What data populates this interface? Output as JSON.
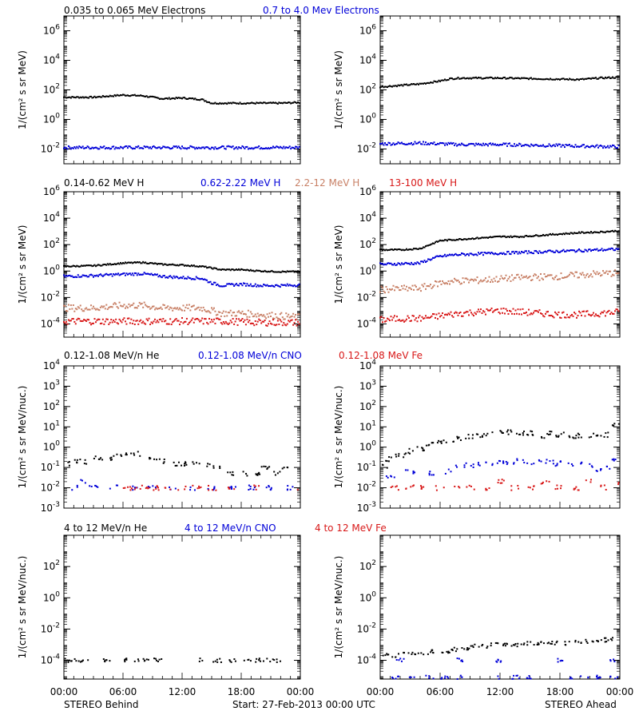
{
  "colors": {
    "black": "#000000",
    "blue": "#0000d8",
    "tan": "#c88066",
    "red": "#d81818"
  },
  "footer": {
    "left_label": "STEREO Behind",
    "center_label": "Start: 27-Feb-2013 00:00 UTC",
    "right_label": "STEREO Ahead"
  },
  "chart_data": [
    {
      "type": "scatter",
      "row": 1,
      "side": "left",
      "legend": [
        {
          "text": "0.035 to 0.065 MeV Electrons",
          "color": "black"
        },
        {
          "text": "0.7 to 4.0 Mev Electrons",
          "color": "blue"
        }
      ],
      "ylabel": "1/(cm² s sr MeV)",
      "yticks": [
        "10^6",
        "10^4",
        "10^2",
        "10^0",
        "10^-2"
      ],
      "ylim_log10": [
        -3,
        7
      ],
      "xlim_hours": [
        0,
        24
      ],
      "series": [
        {
          "color": "black",
          "x": [
            0,
            3,
            6,
            8,
            10,
            12,
            14,
            15,
            16,
            18,
            20,
            22,
            24
          ],
          "log10_y": [
            1.5,
            1.5,
            1.65,
            1.6,
            1.4,
            1.45,
            1.35,
            1.1,
            1.1,
            1.1,
            1.1,
            1.1,
            1.15
          ]
        },
        {
          "color": "blue",
          "x": [
            0,
            4,
            8,
            12,
            16,
            20,
            24
          ],
          "log10_y": [
            -1.9,
            -1.9,
            -1.9,
            -1.9,
            -1.9,
            -1.9,
            -1.9
          ]
        }
      ]
    },
    {
      "type": "scatter",
      "row": 1,
      "side": "right",
      "ylabel": "1/(cm² s sr MeV)",
      "yticks": [
        "10^6",
        "10^4",
        "10^2",
        "10^0",
        "10^-2"
      ],
      "ylim_log10": [
        -3,
        7
      ],
      "xlim_hours": [
        0,
        24
      ],
      "series": [
        {
          "color": "black",
          "x": [
            0,
            2,
            4,
            6,
            7,
            8,
            10,
            12,
            16,
            20,
            22,
            24
          ],
          "log10_y": [
            2.2,
            2.3,
            2.4,
            2.6,
            2.75,
            2.8,
            2.8,
            2.8,
            2.75,
            2.7,
            2.8,
            2.85
          ]
        },
        {
          "color": "blue",
          "x": [
            0,
            4,
            8,
            12,
            16,
            20,
            24
          ],
          "log10_y": [
            -1.65,
            -1.6,
            -1.7,
            -1.7,
            -1.75,
            -1.8,
            -1.85
          ]
        }
      ]
    },
    {
      "type": "scatter",
      "row": 2,
      "side": "left",
      "legend": [
        {
          "text": "0.14-0.62 MeV H",
          "color": "black"
        },
        {
          "text": "0.62-2.22 MeV H",
          "color": "blue"
        },
        {
          "text": "2.2-12 MeV H",
          "color": "tan"
        },
        {
          "text": "13-100 MeV H",
          "color": "red"
        }
      ],
      "ylabel": "1/(cm² s sr MeV)",
      "yticks": [
        "10^6",
        "10^4",
        "10^2",
        "10^0",
        "10^-2",
        "10^-4"
      ],
      "ylim_log10": [
        -5,
        6
      ],
      "xlim_hours": [
        0,
        24
      ],
      "series": [
        {
          "color": "black",
          "x": [
            0,
            3,
            6,
            8,
            10,
            12,
            14,
            16,
            18,
            20,
            22,
            24
          ],
          "log10_y": [
            0.35,
            0.4,
            0.6,
            0.65,
            0.5,
            0.45,
            0.35,
            0.1,
            0.1,
            0.0,
            -0.05,
            -0.05
          ]
        },
        {
          "color": "blue",
          "x": [
            0,
            3,
            6,
            8,
            10,
            12,
            14,
            15,
            16,
            18,
            20,
            22,
            24
          ],
          "log10_y": [
            -0.4,
            -0.35,
            -0.25,
            -0.2,
            -0.4,
            -0.5,
            -0.55,
            -0.9,
            -1.1,
            -1.0,
            -1.1,
            -1.1,
            -1.05
          ]
        },
        {
          "color": "tan",
          "x": [
            0,
            3,
            6,
            8,
            10,
            12,
            14,
            16,
            18,
            20,
            22,
            24
          ],
          "log10_y": [
            -2.8,
            -2.8,
            -2.6,
            -2.6,
            -2.8,
            -2.8,
            -2.8,
            -3.2,
            -3.2,
            -3.3,
            -3.4,
            -3.5
          ]
        },
        {
          "color": "red",
          "x": [
            0,
            4,
            8,
            12,
            16,
            20,
            24
          ],
          "log10_y": [
            -3.8,
            -3.8,
            -3.8,
            -3.8,
            -3.8,
            -3.9,
            -3.9
          ]
        }
      ]
    },
    {
      "type": "scatter",
      "row": 2,
      "side": "right",
      "ylabel": "1/(cm² s sr MeV)",
      "yticks": [
        "10^6",
        "10^4",
        "10^2",
        "10^0",
        "10^-2",
        "10^-4"
      ],
      "ylim_log10": [
        -5,
        6
      ],
      "xlim_hours": [
        0,
        24
      ],
      "series": [
        {
          "color": "black",
          "x": [
            0,
            2,
            4,
            5,
            6,
            7,
            8,
            10,
            12,
            14,
            16,
            18,
            20,
            22,
            24
          ],
          "log10_y": [
            1.6,
            1.6,
            1.7,
            2.0,
            2.3,
            2.35,
            2.4,
            2.5,
            2.6,
            2.6,
            2.7,
            2.8,
            2.9,
            2.95,
            3.05
          ]
        },
        {
          "color": "blue",
          "x": [
            0,
            2,
            4,
            5,
            6,
            7,
            8,
            10,
            12,
            14,
            16,
            18,
            20,
            22,
            24
          ],
          "log10_y": [
            0.5,
            0.55,
            0.6,
            0.9,
            1.1,
            1.2,
            1.25,
            1.3,
            1.35,
            1.4,
            1.45,
            1.5,
            1.55,
            1.6,
            1.65
          ]
        },
        {
          "color": "tan",
          "x": [
            0,
            2,
            4,
            5,
            6,
            7,
            8,
            10,
            12,
            14,
            16,
            18,
            20,
            22,
            24
          ],
          "log10_y": [
            -1.4,
            -1.35,
            -1.3,
            -1.1,
            -0.9,
            -0.8,
            -0.75,
            -0.7,
            -0.6,
            -0.5,
            -0.45,
            -0.4,
            -0.3,
            -0.2,
            -0.15
          ]
        },
        {
          "color": "red",
          "x": [
            0,
            2,
            4,
            6,
            8,
            10,
            12,
            14,
            16,
            18,
            20,
            22,
            24
          ],
          "log10_y": [
            -3.7,
            -3.6,
            -3.6,
            -3.4,
            -3.2,
            -3.1,
            -3.0,
            -3.1,
            -3.2,
            -3.3,
            -3.3,
            -3.2,
            -3.1
          ]
        }
      ]
    },
    {
      "type": "scatter",
      "row": 3,
      "side": "left",
      "legend": [
        {
          "text": "0.12-1.08 MeV/n He",
          "color": "black"
        },
        {
          "text": "0.12-1.08 MeV/n CNO",
          "color": "blue"
        },
        {
          "text": "0.12-1.08 MeV Fe",
          "color": "red"
        }
      ],
      "ylabel": "1/(cm² s sr MeV/nuc.)",
      "yticks": [
        "10^4",
        "10^3",
        "10^2",
        "10^1",
        "10^0",
        "10^-1",
        "10^-2",
        "10^-3"
      ],
      "ylim_log10": [
        -3,
        4
      ],
      "xlim_hours": [
        0,
        24
      ],
      "series": [
        {
          "color": "black",
          "x": [
            0.5,
            1.5,
            2.5,
            3.5,
            4.5,
            5.5,
            6.5,
            7.5,
            8.5,
            9.5,
            10.5,
            11.5,
            12.5,
            13.5,
            14.5,
            15.5,
            17,
            18.5,
            19.5,
            20.5,
            21.5,
            22.5
          ],
          "log10_y": [
            -0.8,
            -0.65,
            -0.7,
            -0.55,
            -0.6,
            -0.45,
            -0.4,
            -0.35,
            -0.5,
            -0.65,
            -0.7,
            -0.8,
            -0.85,
            -0.75,
            -0.9,
            -1.0,
            -1.3,
            -1.3,
            -1.3,
            -1.0,
            -1.3,
            -1.0
          ]
        },
        {
          "color": "blue",
          "x": [
            1,
            2,
            3,
            5,
            7,
            9,
            11,
            13,
            15,
            17,
            19,
            21,
            23
          ],
          "log10_y": [
            -2.0,
            -1.7,
            -2.0,
            -2.0,
            -2.0,
            -2.0,
            -2.0,
            -2.0,
            -2.0,
            -2.0,
            -2.0,
            -2.0,
            -2.0
          ]
        },
        {
          "color": "red",
          "x": [
            6.5,
            7.5,
            8.5,
            9.5,
            10.5,
            12,
            13.5,
            15,
            17,
            19.5,
            24
          ],
          "log10_y": [
            -2.0,
            -2.0,
            -2.0,
            -2.0,
            -2.0,
            -2.0,
            -2.0,
            -2.0,
            -2.0,
            -2.0,
            -2.0
          ]
        }
      ]
    },
    {
      "type": "scatter",
      "row": 3,
      "side": "right",
      "ylabel": "1/(cm² s sr MeV/nuc.)",
      "yticks": [
        "10^4",
        "10^3",
        "10^2",
        "10^1",
        "10^0",
        "10^-1",
        "10^-2",
        "10^-3"
      ],
      "ylim_log10": [
        -3,
        4
      ],
      "xlim_hours": [
        0,
        24
      ],
      "series": [
        {
          "color": "black",
          "x": [
            0.3,
            1,
            2,
            3,
            4,
            5,
            6,
            7,
            8,
            9,
            10,
            11,
            12,
            13,
            14,
            15,
            16,
            17,
            18,
            19,
            20,
            21,
            22,
            23,
            23.7
          ],
          "log10_y": [
            -0.9,
            -0.6,
            -0.4,
            -0.2,
            -0.1,
            0.1,
            0.25,
            0.35,
            0.45,
            0.55,
            0.6,
            0.65,
            0.7,
            0.75,
            0.7,
            0.7,
            0.55,
            0.7,
            0.6,
            0.55,
            0.55,
            0.6,
            0.5,
            0.6,
            1.1
          ]
        },
        {
          "color": "blue",
          "x": [
            1,
            3,
            5,
            7,
            8,
            9,
            10,
            11,
            12,
            13,
            14,
            15,
            16,
            17,
            18,
            19,
            20,
            21,
            22,
            23,
            23.7
          ],
          "log10_y": [
            -1.5,
            -1.2,
            -1.3,
            -1.2,
            -1.0,
            -0.9,
            -0.85,
            -0.8,
            -0.8,
            -0.75,
            -0.7,
            -0.8,
            -0.75,
            -0.7,
            -0.8,
            -0.9,
            -0.85,
            -0.9,
            -1.1,
            -1.0,
            -0.6
          ]
        },
        {
          "color": "red",
          "x": [
            1.5,
            3,
            4.5,
            6,
            7.5,
            9,
            10.5,
            12,
            13.5,
            15,
            16.5,
            18,
            19.5,
            21,
            22.5,
            24
          ],
          "log10_y": [
            -2.0,
            -2.0,
            -2.0,
            -2.0,
            -2.0,
            -2.0,
            -2.0,
            -1.7,
            -2.0,
            -2.0,
            -1.7,
            -2.0,
            -2.0,
            -1.7,
            -2.0,
            -1.7
          ]
        }
      ]
    },
    {
      "type": "scatter",
      "row": 4,
      "side": "left",
      "legend": [
        {
          "text": "4 to 12 MeV/n He",
          "color": "black"
        },
        {
          "text": "4 to 12 MeV/n CNO",
          "color": "blue"
        },
        {
          "text": "4 to 12 MeV Fe",
          "color": "red"
        }
      ],
      "ylabel": "1/(cm² s sr MeV/nuc.)",
      "yticks": [
        "10^2",
        "10^0",
        "10^-2",
        "10^-4"
      ],
      "ylim_log10": [
        -5.2,
        4
      ],
      "xlim_hours": [
        0,
        24
      ],
      "series": [
        {
          "color": "black",
          "x": [
            0.2,
            0.8,
            1.4,
            2.0,
            4.3,
            6.0,
            7.2,
            8.4,
            9.6,
            14.0,
            15.6,
            17.1,
            18.6,
            19.6,
            20.6,
            21.6
          ],
          "log10_y": [
            -4.0,
            -4.0,
            -4.0,
            -4.0,
            -4.0,
            -4.0,
            -4.0,
            -4.0,
            -4.0,
            -4.0,
            -4.0,
            -4.0,
            -4.0,
            -4.0,
            -4.0,
            -4.0
          ]
        }
      ]
    },
    {
      "type": "scatter",
      "row": 4,
      "side": "right",
      "ylabel": "1/(cm² s sr MeV/nuc.)",
      "yticks": [
        "10^2",
        "10^0",
        "10^-2",
        "10^-4"
      ],
      "ylim_log10": [
        -5.2,
        4
      ],
      "xlim_hours": [
        0,
        24
      ],
      "series": [
        {
          "color": "black",
          "x": [
            0.5,
            1.5,
            2.5,
            3.5,
            4.5,
            5.5,
            6.5,
            7.5,
            8.5,
            9.5,
            10.5,
            11.5,
            12.5,
            13.5,
            14.5,
            15.5,
            16.5,
            17.5,
            18.5,
            19.5,
            20.5,
            21.5,
            22.5,
            23.5
          ],
          "log10_y": [
            -3.6,
            -3.7,
            -3.6,
            -3.5,
            -3.5,
            -3.4,
            -3.4,
            -3.3,
            -3.2,
            -3.1,
            -3.1,
            -3.0,
            -3.0,
            -3.0,
            -2.9,
            -2.9,
            -2.9,
            -2.9,
            -2.9,
            -2.8,
            -2.8,
            -2.8,
            -2.7,
            -2.6
          ]
        },
        {
          "color": "blue",
          "x": [
            2,
            8,
            12,
            18,
            23.5
          ],
          "log10_y": [
            -4.0,
            -4.0,
            -4.0,
            -4.0,
            -4.0
          ]
        },
        {
          "color": "blue",
          "x": [
            1.5,
            3,
            5,
            6.5,
            8,
            12,
            13.5,
            15,
            19,
            20.5,
            22,
            23.5
          ],
          "log10_y": [
            -5.1,
            -5.1,
            -5.1,
            -5.1,
            -5.1,
            -5.1,
            -5.1,
            -5.1,
            -5.1,
            -5.1,
            -5.1,
            -5.1
          ]
        }
      ]
    }
  ],
  "x_axis": {
    "ticks": [
      "00:00",
      "06:00",
      "12:00",
      "18:00",
      "00:00"
    ]
  }
}
